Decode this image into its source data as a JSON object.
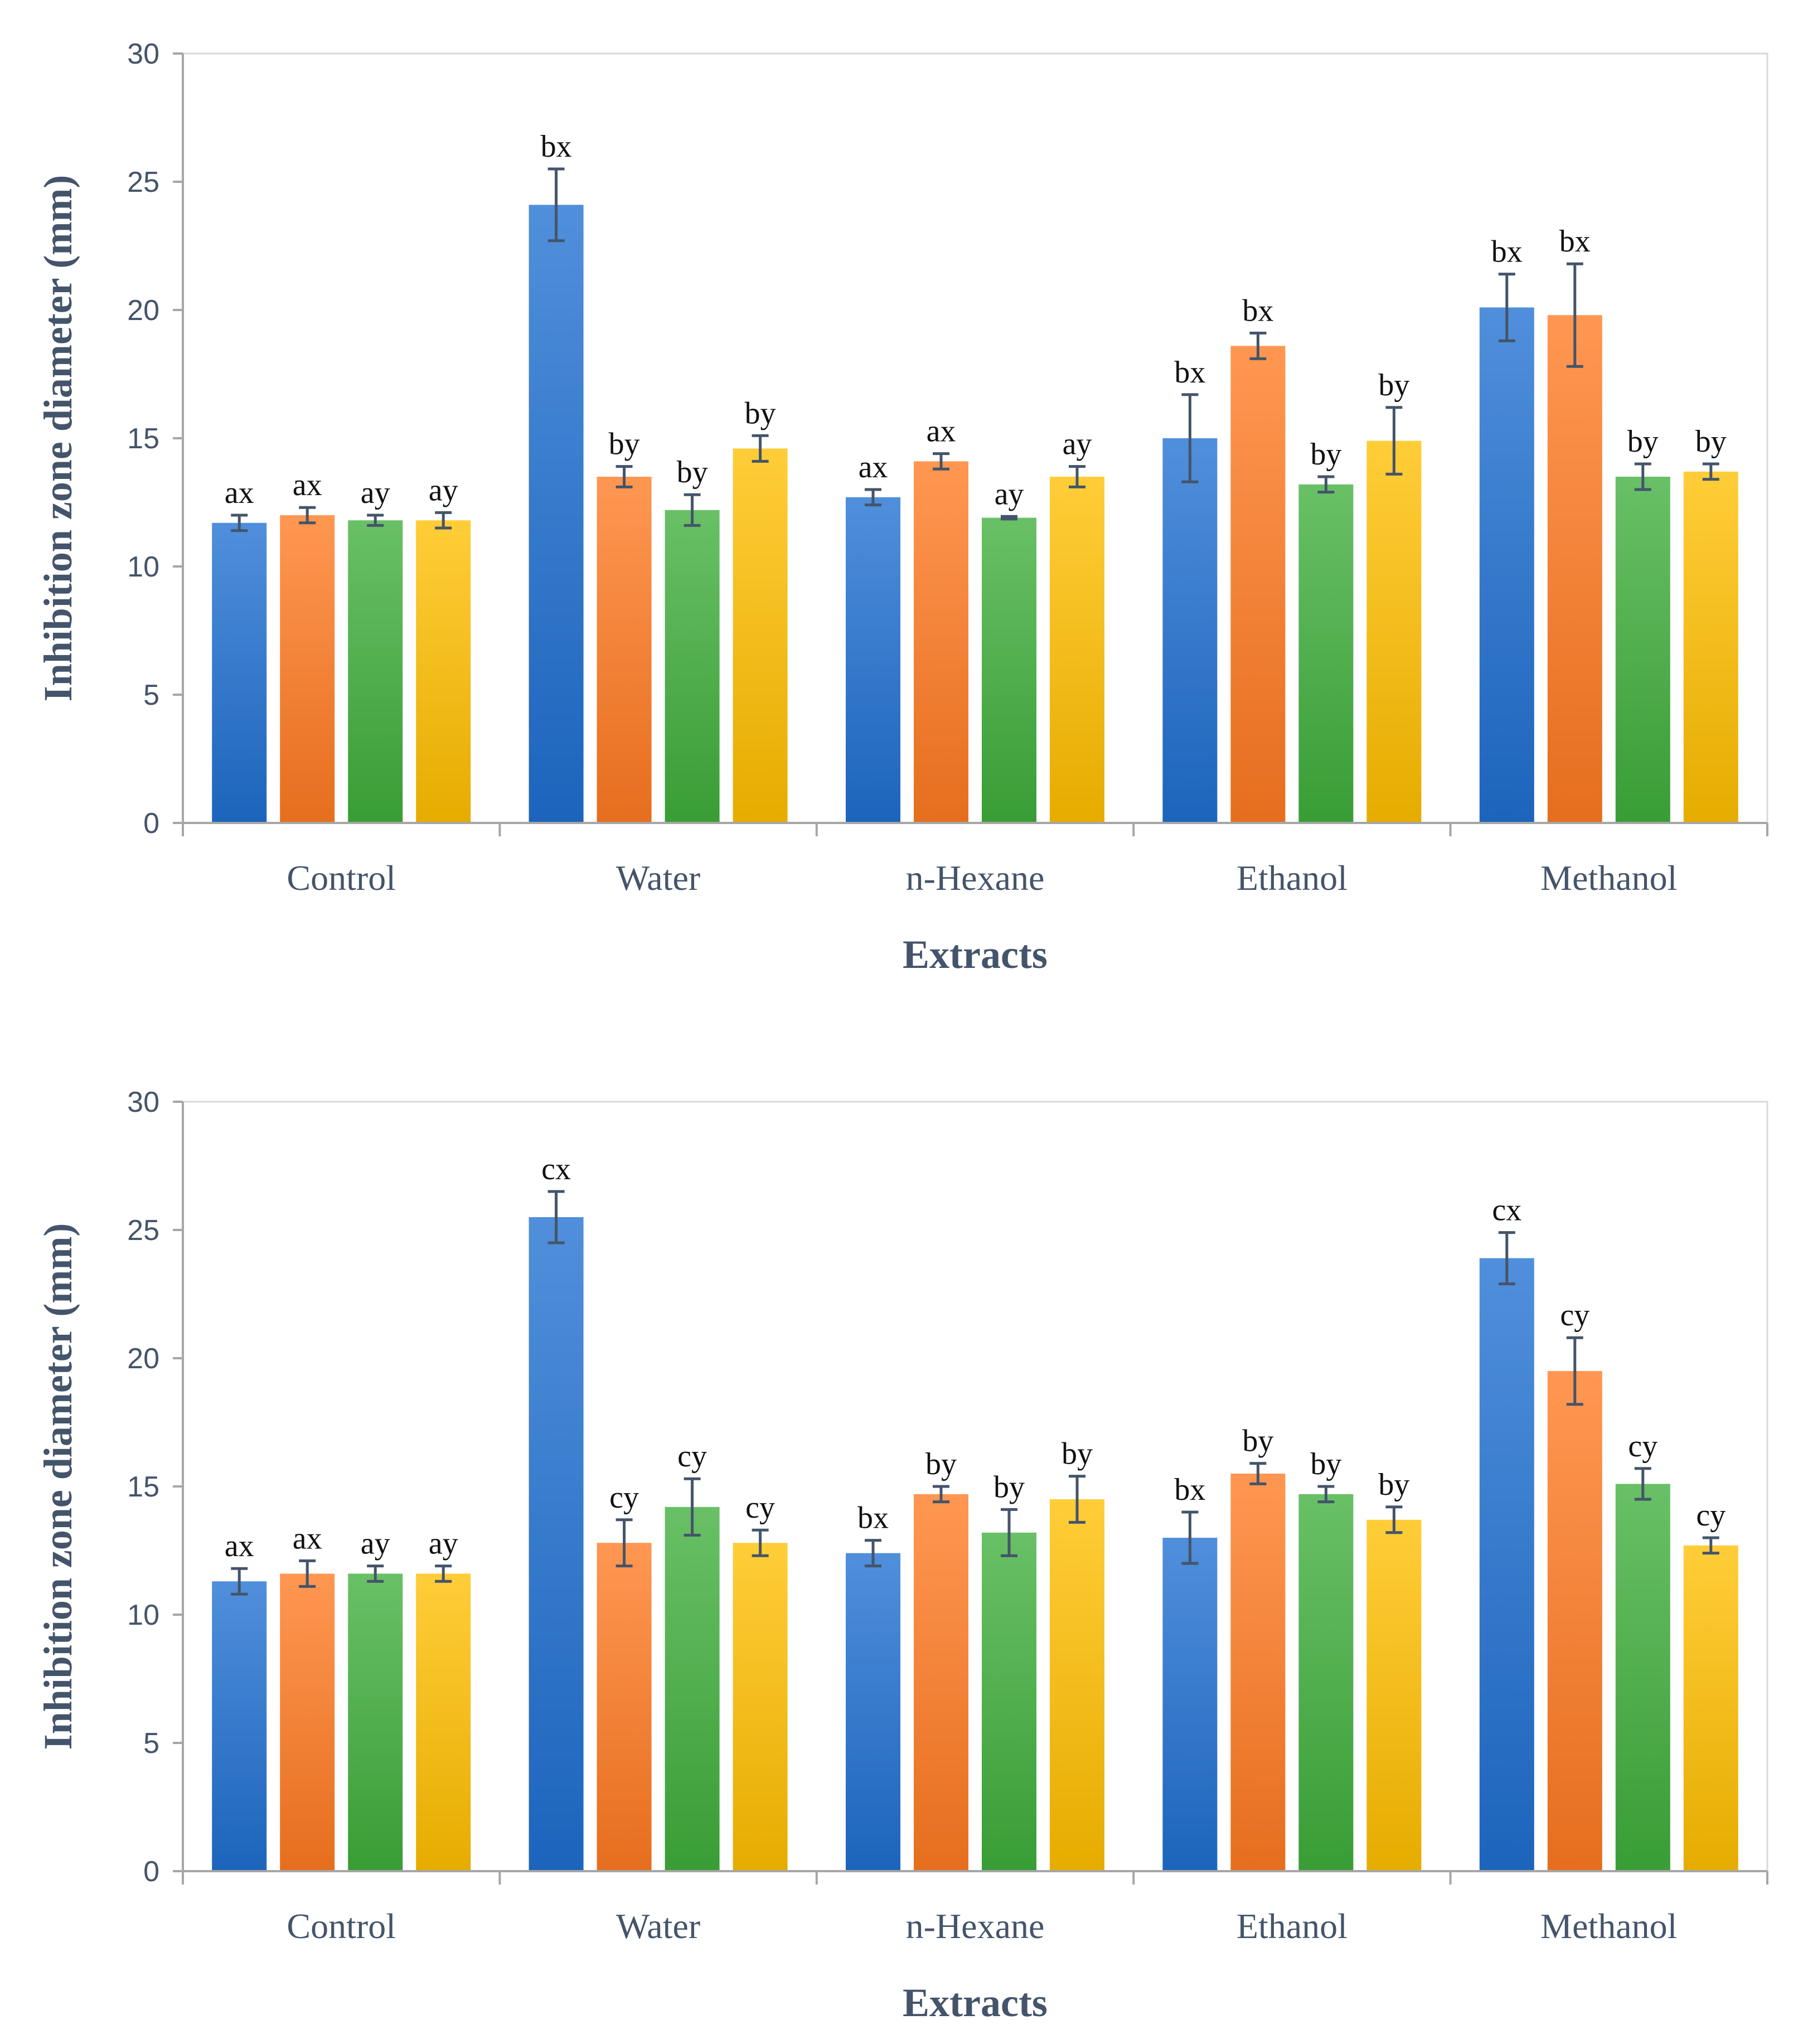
{
  "chart_data": [
    {
      "type": "bar",
      "title": "",
      "xlabel": "Extracts",
      "ylabel": "Inhibition zone diameter (mm)",
      "ylim": [
        0,
        30
      ],
      "yticks": [
        0,
        5,
        10,
        15,
        20,
        25,
        30
      ],
      "grid": false,
      "legend": "none",
      "categories": [
        "Control",
        "Water",
        "n-Hexane",
        "Ethanol",
        "Methanol"
      ],
      "series": [
        {
          "color": "#1f6fd1",
          "values": [
            11.7,
            24.1,
            12.7,
            15.0,
            20.1
          ],
          "errors": [
            0.3,
            1.4,
            0.3,
            1.7,
            1.3
          ],
          "labels": [
            "ax",
            "bx",
            "ax",
            "bx",
            "bx"
          ]
        },
        {
          "color": "#ff7a21",
          "values": [
            12.0,
            13.5,
            14.1,
            18.6,
            19.8
          ],
          "errors": [
            0.3,
            0.4,
            0.3,
            0.5,
            2.0
          ],
          "labels": [
            "ax",
            "by",
            "ax",
            "bx",
            "bx"
          ]
        },
        {
          "color": "#3fae3b",
          "values": [
            11.8,
            12.2,
            11.9,
            13.2,
            13.5
          ],
          "errors": [
            0.2,
            0.6,
            0.05,
            0.3,
            0.5
          ],
          "labels": [
            "ay",
            "by",
            "ay",
            "by",
            "by"
          ]
        },
        {
          "color": "#ffbf00",
          "values": [
            11.8,
            14.6,
            13.5,
            14.9,
            13.7
          ],
          "errors": [
            0.3,
            0.5,
            0.4,
            1.3,
            0.3
          ],
          "labels": [
            "ay",
            "by",
            "ay",
            "by",
            "by"
          ]
        }
      ]
    },
    {
      "type": "bar",
      "title": "",
      "xlabel": "Extracts",
      "ylabel": "Inhibition zone diameter (mm)",
      "ylim": [
        0,
        30
      ],
      "yticks": [
        0,
        5,
        10,
        15,
        20,
        25,
        30
      ],
      "grid": false,
      "legend": "none",
      "categories": [
        "Control",
        "Water",
        "n-Hexane",
        "Ethanol",
        "Methanol"
      ],
      "series": [
        {
          "color": "#1f6fd1",
          "values": [
            11.3,
            25.5,
            12.4,
            13.0,
            23.9
          ],
          "errors": [
            0.5,
            1.0,
            0.5,
            1.0,
            1.0
          ],
          "labels": [
            "ax",
            "cx",
            "bx",
            "bx",
            "cx"
          ]
        },
        {
          "color": "#ff7a21",
          "values": [
            11.6,
            12.8,
            14.7,
            15.5,
            19.5
          ],
          "errors": [
            0.5,
            0.9,
            0.3,
            0.4,
            1.3
          ],
          "labels": [
            "ax",
            "cy",
            "by",
            "by",
            "cy"
          ]
        },
        {
          "color": "#3fae3b",
          "values": [
            11.6,
            14.2,
            13.2,
            14.7,
            15.1
          ],
          "errors": [
            0.3,
            1.1,
            0.9,
            0.3,
            0.6
          ],
          "labels": [
            "ay",
            "cy",
            "by",
            "by",
            "cy"
          ]
        },
        {
          "color": "#ffbf00",
          "values": [
            11.6,
            12.8,
            14.5,
            13.7,
            12.7
          ],
          "errors": [
            0.3,
            0.5,
            0.9,
            0.5,
            0.3
          ],
          "labels": [
            "ay",
            "cy",
            "by",
            "by",
            "cy"
          ]
        }
      ]
    }
  ],
  "colors": {
    "axis": "#a6a6a6",
    "text": "#44546a",
    "error_bar": "#44546a"
  }
}
